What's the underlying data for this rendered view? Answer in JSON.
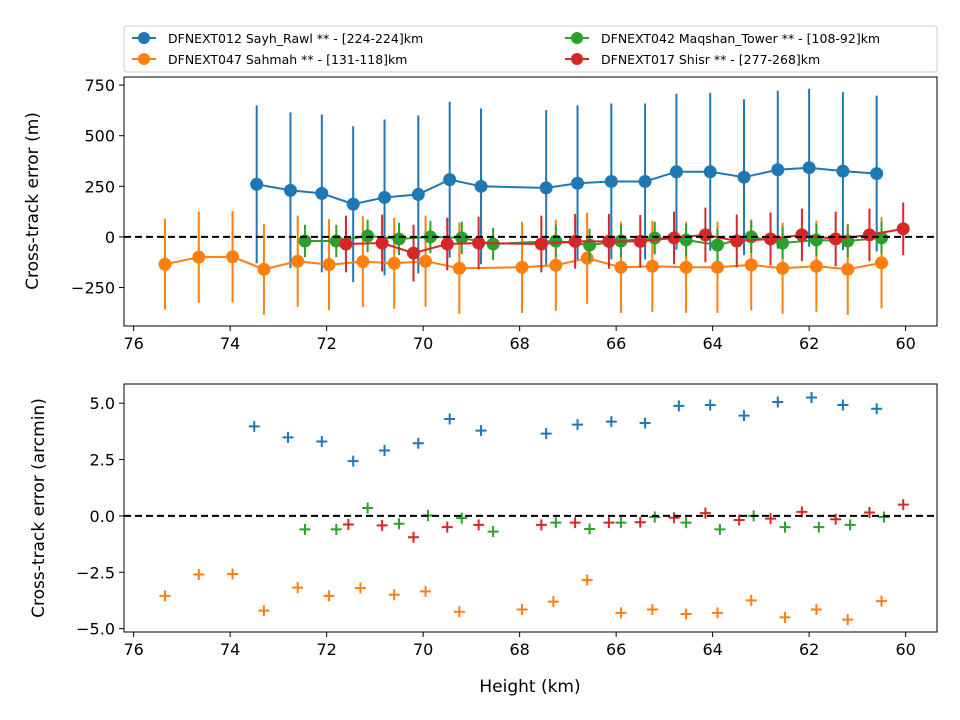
{
  "chart_data": {
    "legend": {
      "placement": "top",
      "entries": [
        {
          "name": "DFNEXT012 Sayh_Rawl **  - [224-224]km",
          "color": "#1f77b4"
        },
        {
          "name": "DFNEXT042 Maqshan_Tower **  - [108-92]km",
          "color": "#2ca02c"
        },
        {
          "name": "DFNEXT047 Sahmah **  - [131-118]km",
          "color": "#ff7f0e"
        },
        {
          "name": "DFNEXT017 Shisr **  - [277-268]km",
          "color": "#d62728"
        }
      ]
    },
    "xlabel": "Height (km)",
    "xlim": [
      76.2,
      59.35
    ],
    "xticks": [
      "76",
      "74",
      "72",
      "70",
      "68",
      "66",
      "64",
      "62",
      "60"
    ],
    "xtick_values": [
      76,
      74,
      72,
      70,
      68,
      66,
      64,
      62,
      60
    ],
    "charts": [
      {
        "type": "line",
        "ylabel": "Cross-track error (m)",
        "ylim": [
          -440,
          790
        ],
        "yticks": [
          "750",
          "500",
          "250",
          "0",
          "−250"
        ],
        "ytick_values": [
          750,
          500,
          250,
          0,
          -250
        ],
        "reference_line": 0,
        "series": [
          {
            "name": "DFNEXT012 Sayh_Rawl **  - [224-224]km",
            "color": "#1f77b4",
            "x": [
              73.45,
              72.75,
              72.1,
              71.45,
              70.8,
              70.1,
              69.45,
              68.8,
              67.45,
              66.8,
              66.1,
              65.4,
              64.75,
              64.05,
              63.35,
              62.65,
              62.0,
              61.3,
              60.6
            ],
            "y": [
              260,
              230,
              215,
              162,
              195,
              210,
              283,
              250,
              242,
              265,
              274,
              274,
              322,
              322,
              295,
              332,
              342,
              325,
              313
            ],
            "err": [
              390,
              385,
              390,
              385,
              385,
              390,
              385,
              385,
              385,
              385,
              385,
              385,
              385,
              390,
              385,
              390,
              390,
              390,
              385
            ]
          },
          {
            "name": "DFNEXT047 Sahmah **  - [131-118]km",
            "color": "#ff7f0e",
            "x": [
              75.35,
              74.65,
              73.95,
              73.3,
              72.6,
              71.95,
              71.25,
              70.6,
              69.95,
              69.25,
              67.95,
              67.25,
              66.6,
              65.9,
              65.25,
              64.55,
              63.9,
              63.2,
              62.55,
              61.85,
              61.2,
              60.5
            ],
            "y": [
              -135,
              -100,
              -98,
              -160,
              -120,
              -137,
              -122,
              -130,
              -120,
              -155,
              -150,
              -140,
              -105,
              -150,
              -145,
              -150,
              -150,
              -138,
              -155,
              -145,
              -160,
              -128
            ],
            "err": [
              225,
              225,
              225,
              225,
              225,
              225,
              225,
              225,
              225,
              225,
              225,
              225,
              225,
              225,
              225,
              225,
              225,
              225,
              225,
              225,
              225,
              225
            ]
          },
          {
            "name": "DFNEXT042 Maqshan_Tower **  - [108-92]km",
            "color": "#2ca02c",
            "x": [
              72.45,
              71.8,
              71.15,
              70.5,
              69.85,
              69.2,
              68.55,
              67.25,
              66.55,
              65.9,
              65.2,
              64.55,
              63.9,
              63.2,
              62.55,
              61.85,
              61.2,
              60.5
            ],
            "y": [
              -20,
              -20,
              5,
              -10,
              0,
              -5,
              -35,
              -20,
              -40,
              -20,
              -5,
              -15,
              -40,
              0,
              -30,
              -15,
              -20,
              -5
            ],
            "err": [
              80,
              80,
              80,
              80,
              80,
              80,
              80,
              80,
              80,
              80,
              80,
              80,
              80,
              80,
              80,
              80,
              80,
              80
            ]
          },
          {
            "name": "DFNEXT017 Shisr **  - [277-268]km",
            "color": "#d62728",
            "x": [
              71.6,
              70.85,
              70.2,
              69.5,
              68.85,
              67.55,
              66.85,
              66.15,
              65.5,
              64.8,
              64.15,
              63.5,
              62.8,
              62.15,
              61.45,
              60.75,
              60.05
            ],
            "y": [
              -35,
              -30,
              -80,
              -35,
              -30,
              -35,
              -22,
              -22,
              -22,
              -5,
              10,
              -20,
              -10,
              10,
              -10,
              10,
              40
            ],
            "err": [
              140,
              140,
              140,
              130,
              130,
              140,
              135,
              135,
              130,
              130,
              135,
              130,
              130,
              130,
              135,
              130,
              130
            ]
          }
        ]
      },
      {
        "type": "scatter",
        "marker": "+",
        "ylabel": "Cross-track error (arcmin)",
        "ylim": [
          -5.15,
          5.85
        ],
        "yticks": [
          "5.0",
          "2.5",
          "0.0",
          "−2.5",
          "−5.0"
        ],
        "ytick_values": [
          5,
          2.5,
          0,
          -2.5,
          -5
        ],
        "reference_line": 0,
        "series": [
          {
            "name": "DFNEXT012 Sayh_Rawl **  - [224-224]km",
            "color": "#1f77b4",
            "x": [
              73.5,
              72.8,
              72.1,
              71.45,
              70.8,
              70.1,
              69.45,
              68.8,
              67.45,
              66.8,
              66.1,
              65.4,
              64.7,
              64.05,
              63.35,
              62.65,
              61.95,
              61.3,
              60.6
            ],
            "y": [
              3.97,
              3.48,
              3.3,
              2.43,
              2.9,
              3.22,
              4.3,
              3.78,
              3.65,
              4.05,
              4.18,
              4.12,
              4.88,
              4.92,
              4.45,
              5.05,
              5.25,
              4.92,
              4.75
            ]
          },
          {
            "name": "DFNEXT047 Sahmah **  - [131-118]km",
            "color": "#ff7f0e",
            "x": [
              75.35,
              74.65,
              73.95,
              73.3,
              72.6,
              71.95,
              71.3,
              70.6,
              69.95,
              69.25,
              67.95,
              67.3,
              66.6,
              65.9,
              65.25,
              64.55,
              63.9,
              63.2,
              62.5,
              61.85,
              61.2,
              60.5
            ],
            "y": [
              -3.55,
              -2.6,
              -2.58,
              -4.2,
              -3.18,
              -3.55,
              -3.2,
              -3.5,
              -3.35,
              -4.25,
              -4.15,
              -3.8,
              -2.85,
              -4.3,
              -4.15,
              -4.35,
              -4.3,
              -3.75,
              -4.5,
              -4.15,
              -4.6,
              -3.78
            ]
          },
          {
            "name": "DFNEXT042 Maqshan_Tower **  - [108-92]km",
            "color": "#2ca02c",
            "x": [
              72.45,
              71.8,
              71.15,
              70.5,
              69.9,
              69.2,
              68.55,
              67.25,
              66.55,
              65.9,
              65.2,
              64.55,
              63.85,
              63.15,
              62.5,
              61.8,
              61.15,
              60.45
            ],
            "y": [
              -0.6,
              -0.6,
              0.35,
              -0.35,
              0.02,
              -0.1,
              -0.7,
              -0.3,
              -0.58,
              -0.3,
              -0.05,
              -0.3,
              -0.6,
              0.0,
              -0.5,
              -0.5,
              -0.4,
              -0.05
            ]
          },
          {
            "name": "DFNEXT017 Shisr **  - [277-268]km",
            "color": "#d62728",
            "x": [
              71.55,
              70.85,
              70.2,
              69.5,
              68.85,
              67.55,
              66.85,
              66.15,
              65.5,
              64.8,
              64.15,
              63.45,
              62.8,
              62.15,
              61.45,
              60.75,
              60.05
            ],
            "y": [
              -0.38,
              -0.42,
              -0.95,
              -0.5,
              -0.4,
              -0.4,
              -0.3,
              -0.3,
              -0.28,
              -0.08,
              0.12,
              -0.18,
              -0.12,
              0.18,
              -0.15,
              0.15,
              0.5
            ]
          }
        ]
      }
    ]
  }
}
